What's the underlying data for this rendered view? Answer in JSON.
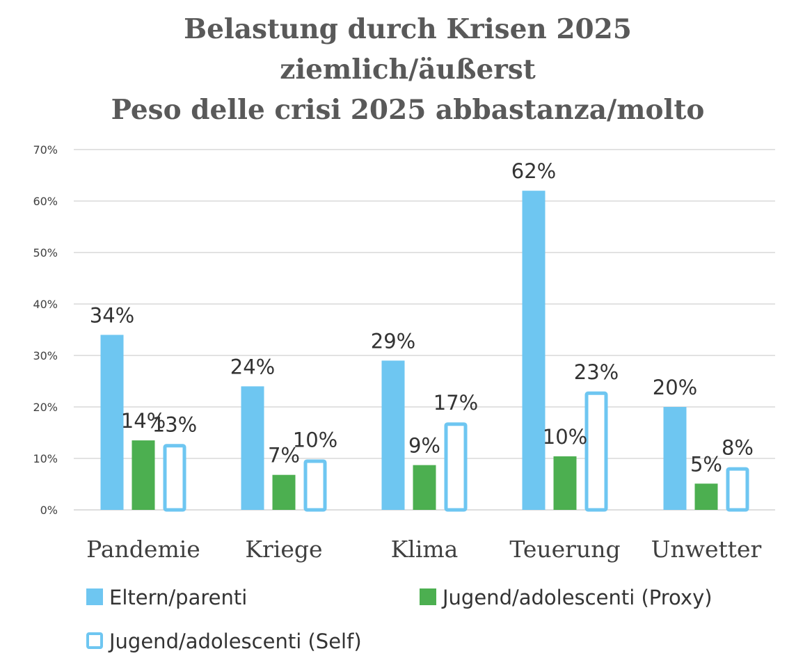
{
  "chart_data": {
    "type": "bar",
    "title": [
      "Belastung durch Krisen 2025",
      "ziemlich/äußerst",
      "Peso delle crisi 2025 abbastanza/molto"
    ],
    "categories": [
      "Pandemie",
      "Kriege",
      "Klima",
      "Teuerung",
      "Unwetter"
    ],
    "series": [
      {
        "name": "Eltern/parenti",
        "values": [
          34,
          24,
          29,
          62,
          20
        ],
        "labels": [
          "34%",
          "24%",
          "29%",
          "62%",
          "20%"
        ],
        "color": "#6EC6F1",
        "style": "filled"
      },
      {
        "name": "Jugend/adolescenti (Proxy)",
        "values": [
          13.5,
          6.8,
          8.7,
          10.4,
          5.1
        ],
        "labels": [
          "14%",
          "7%",
          "9%",
          "10%",
          "5%"
        ],
        "color": "#4CAF50",
        "style": "filled"
      },
      {
        "name": "Jugend/adolescenti (Self)",
        "values": [
          12.8,
          9.8,
          17,
          23,
          8.3
        ],
        "labels": [
          "13%",
          "10%",
          "17%",
          "23%",
          "8%"
        ],
        "color": "#6EC6F1",
        "style": "outline"
      }
    ],
    "ylim": [
      0,
      70
    ],
    "yticks": [
      "0%",
      "10%",
      "20%",
      "30%",
      "40%",
      "50%",
      "60%",
      "70%"
    ],
    "xlabel": "",
    "ylabel": "",
    "grid": true,
    "legend_position": "bottom"
  }
}
